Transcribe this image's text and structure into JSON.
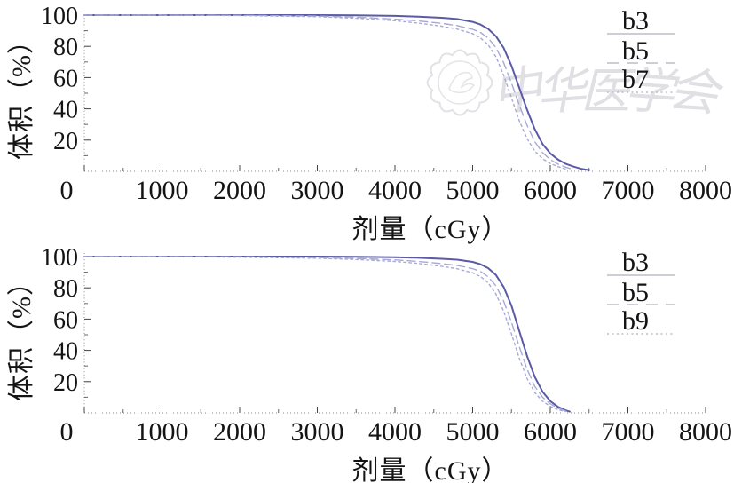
{
  "watermark": {
    "script_text": "中华医学会"
  },
  "chart_data": [
    {
      "type": "line",
      "title": "",
      "xlabel": "剂量（cGy）",
      "ylabel": "体积（%）",
      "xlim": [
        0,
        8000
      ],
      "ylim": [
        0,
        100
      ],
      "x_ticks": [
        0,
        1000,
        2000,
        3000,
        4000,
        5000,
        6000,
        7000,
        8000
      ],
      "y_ticks": [
        20,
        40,
        60,
        80,
        100
      ],
      "grid": false,
      "legend_position": "upper right",
      "series": [
        {
          "name": "b3",
          "line_style": "solid",
          "color": "#5a5aa6",
          "points": [
            [
              0,
              100
            ],
            [
              1000,
              100
            ],
            [
              2000,
              100
            ],
            [
              3000,
              100
            ],
            [
              3500,
              99.9
            ],
            [
              4000,
              99.5
            ],
            [
              4300,
              99
            ],
            [
              4600,
              98.3
            ],
            [
              4800,
              97.5
            ],
            [
              5000,
              95.7
            ],
            [
              5100,
              94
            ],
            [
              5200,
              91.2
            ],
            [
              5300,
              86.5
            ],
            [
              5400,
              79
            ],
            [
              5500,
              67.5
            ],
            [
              5600,
              53.5
            ],
            [
              5700,
              39.5
            ],
            [
              5800,
              27
            ],
            [
              5900,
              17.5
            ],
            [
              6000,
              11.5
            ],
            [
              6100,
              7.5
            ],
            [
              6200,
              4.8
            ],
            [
              6300,
              3
            ],
            [
              6400,
              1.6
            ],
            [
              6500,
              0.8
            ]
          ]
        },
        {
          "name": "b5",
          "line_style": "dashed",
          "color": "#a7a9d6",
          "points": [
            [
              0,
              100
            ],
            [
              1000,
              100
            ],
            [
              2000,
              99.9
            ],
            [
              3000,
              99.4
            ],
            [
              3500,
              98.7
            ],
            [
              4000,
              97.4
            ],
            [
              4300,
              96.3
            ],
            [
              4600,
              94.7
            ],
            [
              4800,
              93.3
            ],
            [
              5000,
              90.9
            ],
            [
              5100,
              88.9
            ],
            [
              5200,
              85.3
            ],
            [
              5300,
              79.2
            ],
            [
              5400,
              69.5
            ],
            [
              5500,
              56.5
            ],
            [
              5600,
              42.5
            ],
            [
              5700,
              29.5
            ],
            [
              5800,
              19
            ],
            [
              5900,
              12
            ],
            [
              6000,
              7.5
            ],
            [
              6100,
              4.6
            ],
            [
              6200,
              2.6
            ],
            [
              6300,
              1.2
            ]
          ]
        },
        {
          "name": "b7",
          "line_style": "dotted",
          "color": "#a7a9d6",
          "points": [
            [
              0,
              100
            ],
            [
              1000,
              100
            ],
            [
              2000,
              99.7
            ],
            [
              3000,
              99
            ],
            [
              3500,
              98
            ],
            [
              4000,
              96.4
            ],
            [
              4300,
              94.9
            ],
            [
              4600,
              92.9
            ],
            [
              4800,
              91.1
            ],
            [
              5000,
              88.1
            ],
            [
              5100,
              85.4
            ],
            [
              5200,
              81
            ],
            [
              5300,
              73.3
            ],
            [
              5400,
              61.5
            ],
            [
              5500,
              47
            ],
            [
              5600,
              32.5
            ],
            [
              5700,
              21
            ],
            [
              5800,
              13
            ],
            [
              5900,
              8
            ],
            [
              6000,
              5
            ],
            [
              6100,
              3
            ],
            [
              6200,
              1.4
            ]
          ]
        }
      ]
    },
    {
      "type": "line",
      "title": "",
      "xlabel": "剂量（cGy）",
      "ylabel": "体积（%）",
      "xlim": [
        0,
        8000
      ],
      "ylim": [
        0,
        100
      ],
      "x_ticks": [
        0,
        1000,
        2000,
        3000,
        4000,
        5000,
        6000,
        7000,
        8000
      ],
      "y_ticks": [
        20,
        40,
        60,
        80,
        100
      ],
      "grid": false,
      "legend_position": "upper right",
      "series": [
        {
          "name": "b3",
          "line_style": "solid",
          "color": "#5a5aa6",
          "points": [
            [
              0,
              100
            ],
            [
              1000,
              100
            ],
            [
              2000,
              100
            ],
            [
              3000,
              100
            ],
            [
              3500,
              99.9
            ],
            [
              4000,
              99.6
            ],
            [
              4300,
              99.2
            ],
            [
              4600,
              98.6
            ],
            [
              4800,
              98
            ],
            [
              5000,
              96.6
            ],
            [
              5100,
              95.1
            ],
            [
              5200,
              92.6
            ],
            [
              5300,
              88.2
            ],
            [
              5400,
              80.5
            ],
            [
              5500,
              68.5
            ],
            [
              5600,
              52.5
            ],
            [
              5700,
              36.5
            ],
            [
              5800,
              23
            ],
            [
              5900,
              13.5
            ],
            [
              6000,
              7.5
            ],
            [
              6100,
              3.8
            ],
            [
              6200,
              1.6
            ],
            [
              6250,
              0.8
            ]
          ]
        },
        {
          "name": "b5",
          "line_style": "dashed",
          "color": "#a7a9d6",
          "points": [
            [
              0,
              100
            ],
            [
              1000,
              100
            ],
            [
              2000,
              99.9
            ],
            [
              3000,
              99.4
            ],
            [
              3500,
              98.8
            ],
            [
              4000,
              97.9
            ],
            [
              4300,
              96.9
            ],
            [
              4600,
              95.5
            ],
            [
              4800,
              94.3
            ],
            [
              5000,
              92.3
            ],
            [
              5100,
              90.5
            ],
            [
              5200,
              87.1
            ],
            [
              5300,
              81.3
            ],
            [
              5400,
              71.5
            ],
            [
              5500,
              58
            ],
            [
              5600,
              42.5
            ],
            [
              5700,
              28
            ],
            [
              5800,
              17
            ],
            [
              5900,
              10
            ],
            [
              6000,
              5.8
            ],
            [
              6100,
              2.9
            ],
            [
              6200,
              1.2
            ]
          ]
        },
        {
          "name": "b9",
          "line_style": "dotted",
          "color": "#a7a9d6",
          "points": [
            [
              0,
              100
            ],
            [
              1000,
              100
            ],
            [
              2000,
              99.6
            ],
            [
              3000,
              98.9
            ],
            [
              3500,
              98.1
            ],
            [
              4000,
              96.9
            ],
            [
              4300,
              95.6
            ],
            [
              4600,
              93.8
            ],
            [
              4800,
              92.2
            ],
            [
              5000,
              89.6
            ],
            [
              5100,
              87.3
            ],
            [
              5200,
              83.2
            ],
            [
              5300,
              76
            ],
            [
              5400,
              65
            ],
            [
              5500,
              50.5
            ],
            [
              5600,
              35
            ],
            [
              5700,
              22
            ],
            [
              5800,
              13
            ],
            [
              5900,
              7.5
            ],
            [
              6000,
              4.2
            ],
            [
              6100,
              2
            ],
            [
              6200,
              0.8
            ]
          ]
        }
      ]
    }
  ],
  "style": {
    "axis_tick_color": "#444444",
    "axis_dot_color": "#8a8a8a",
    "legend_sample_color": "#bcbec9",
    "solid_curve_color": "#5a5aa6",
    "light_curve_color": "#a7a9d6"
  }
}
